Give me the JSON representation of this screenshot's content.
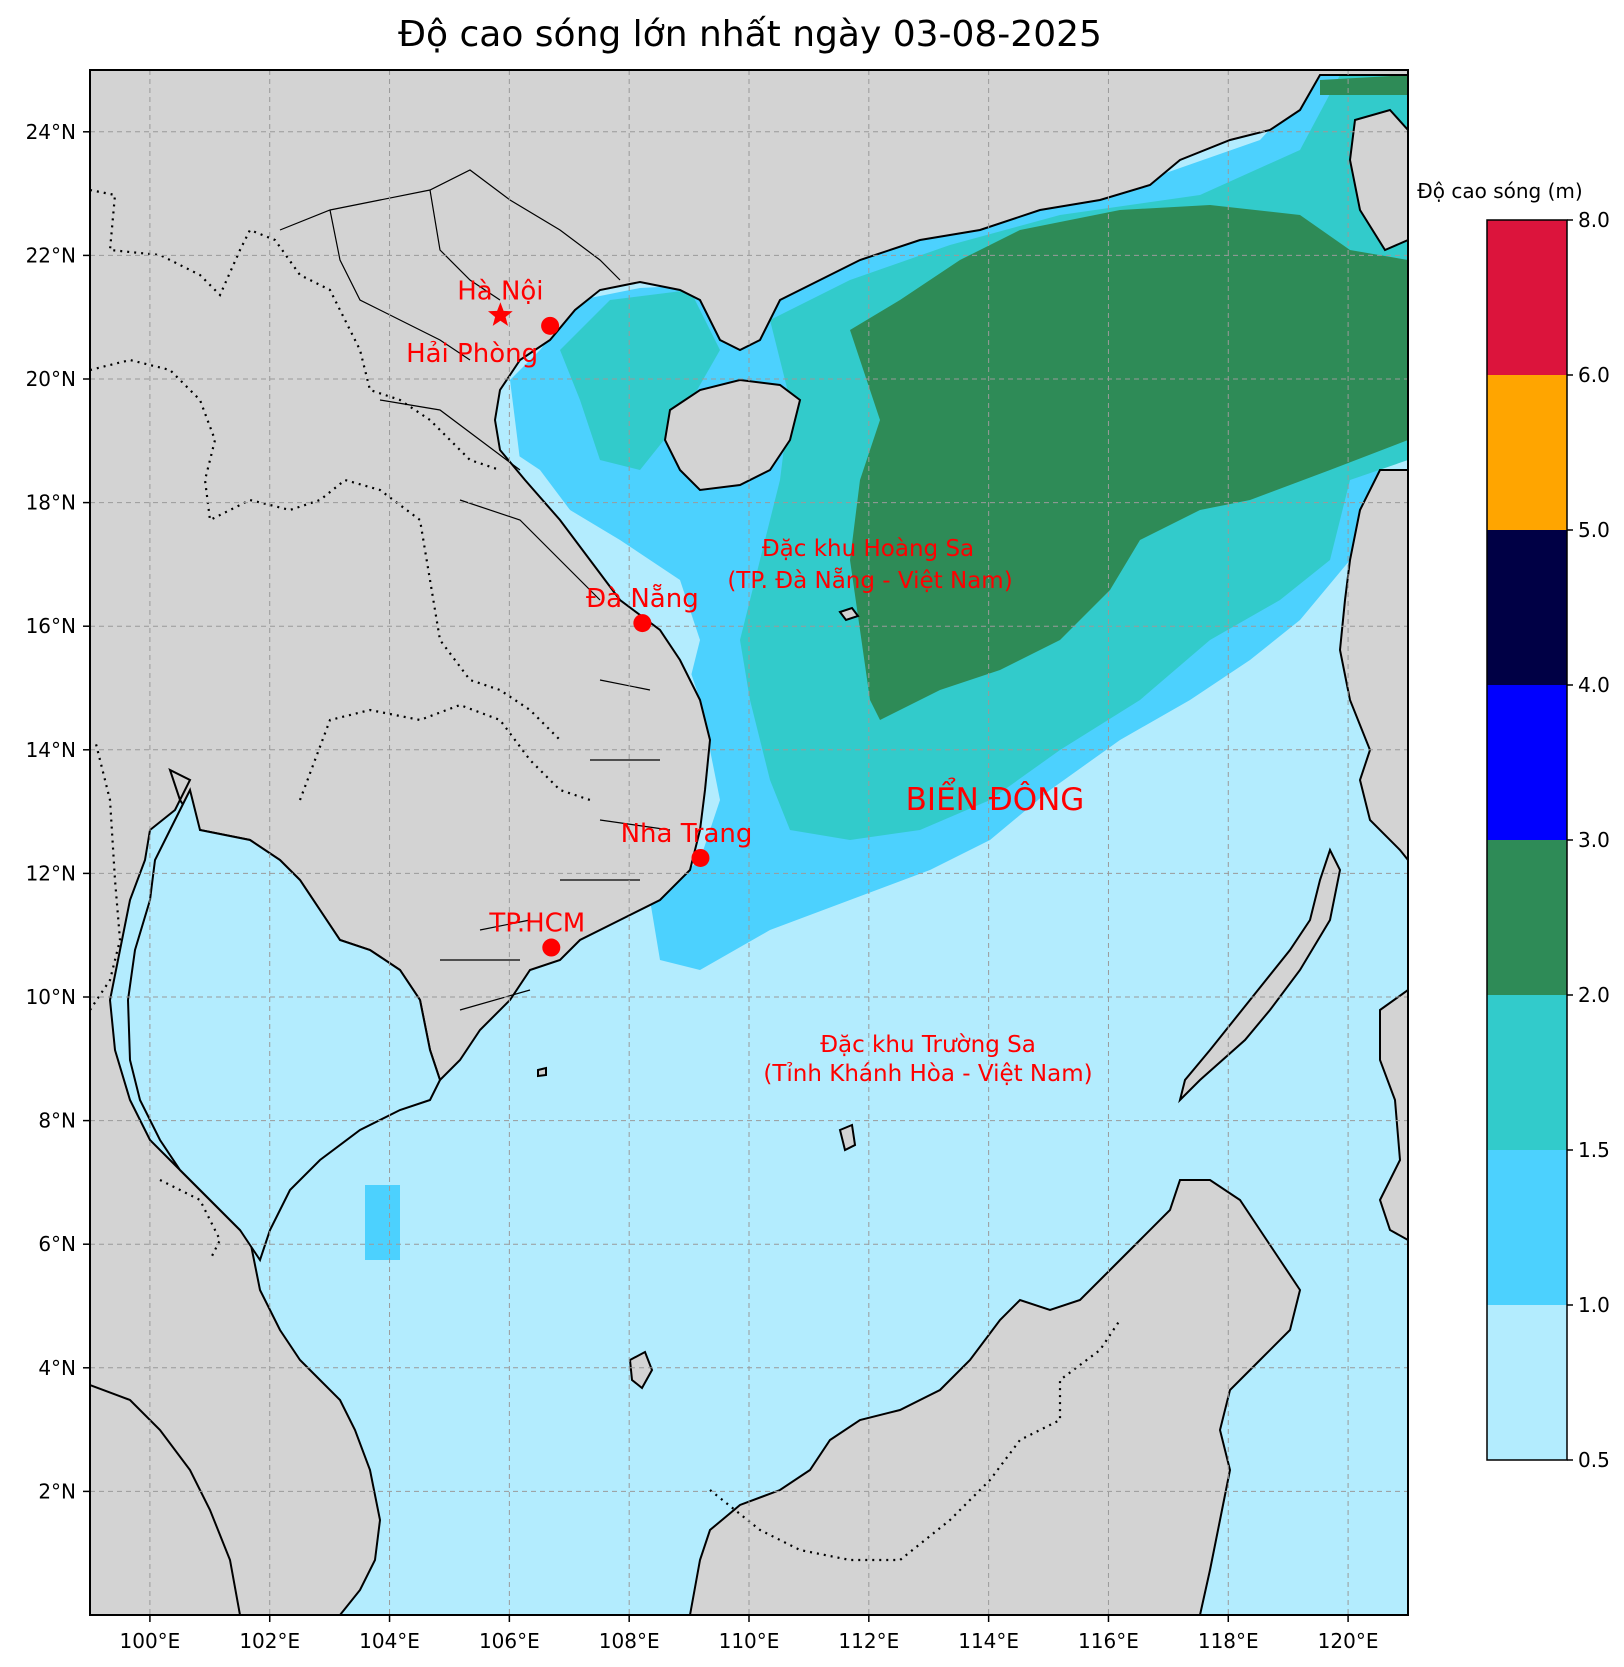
{
  "title": "Độ cao sóng lớn nhất ngày 03-08-2025",
  "map": {
    "lon_range": [
      99,
      121
    ],
    "lat_range": [
      0,
      25
    ],
    "lon_ticks": [
      "100°E",
      "102°E",
      "104°E",
      "106°E",
      "108°E",
      "110°E",
      "112°E",
      "114°E",
      "116°E",
      "118°E",
      "120°E"
    ],
    "lat_ticks": [
      "2°N",
      "4°N",
      "6°N",
      "8°N",
      "10°N",
      "12°N",
      "14°N",
      "16°N",
      "18°N",
      "20°N",
      "22°N",
      "24°N"
    ],
    "grid": true
  },
  "cities": [
    {
      "name": "Hà Nội",
      "lon": 105.85,
      "lat": 21.03,
      "marker": "star"
    },
    {
      "name": "Hải Phòng",
      "lon": 106.68,
      "lat": 20.86,
      "marker": "dot"
    },
    {
      "name": "Đà Nẵng",
      "lon": 108.22,
      "lat": 16.05,
      "marker": "dot"
    },
    {
      "name": "Nha Trang",
      "lon": 109.19,
      "lat": 12.25,
      "marker": "dot"
    },
    {
      "name": "TP.HCM",
      "lon": 106.7,
      "lat": 10.8,
      "marker": "dot"
    }
  ],
  "annotations": {
    "hoang_sa_1": "Đặc khu Hoàng Sa",
    "hoang_sa_2": "(TP. Đà Nẵng - Việt Nam)",
    "truong_sa_1": "Đặc khu Trường Sa",
    "truong_sa_2": "(Tỉnh Khánh Hòa - Việt Nam)",
    "sea_name": "BIỂN ĐÔNG"
  },
  "colorbar": {
    "title": "Độ cao sóng (m)",
    "levels": [
      "0.5",
      "1.0",
      "1.5",
      "2.0",
      "3.0",
      "4.0",
      "5.0",
      "6.0",
      "8.0"
    ],
    "colors": [
      "#b3ecfe",
      "#4cd1fe",
      "#32cbcb",
      "#2e8b57",
      "#0000ff",
      "#000045",
      "#ffa500",
      "#dc143c"
    ]
  },
  "colors": {
    "land": "#d3d3d3",
    "sea_base": "#b3ecfe",
    "marker": "#ff0000",
    "label": "#ff0000"
  }
}
